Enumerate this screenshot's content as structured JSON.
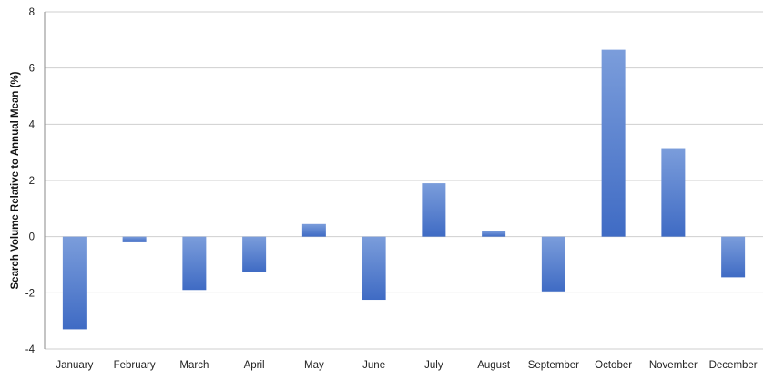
{
  "chart_data": {
    "type": "bar",
    "ylabel": "Search Volume Relative to Annual Mean (%)",
    "xlabel": "",
    "title": "",
    "ylim": [
      -4,
      8
    ],
    "yticks": [
      -4,
      -2,
      0,
      2,
      4,
      6,
      8
    ],
    "grid": true,
    "legend": "none",
    "categories": [
      "January",
      "February",
      "March",
      "April",
      "May",
      "June",
      "July",
      "August",
      "September",
      "October",
      "November",
      "December"
    ],
    "values": [
      -3.3,
      -0.2,
      -1.9,
      -1.25,
      0.45,
      -2.25,
      1.9,
      0.2,
      -1.95,
      6.65,
      3.15,
      -1.45
    ],
    "colors": {
      "bar_top": "#7b9ddb",
      "bar_bottom": "#3f6bc4",
      "grid": "#cfcfcf",
      "axis": "#8a8a8a"
    }
  }
}
